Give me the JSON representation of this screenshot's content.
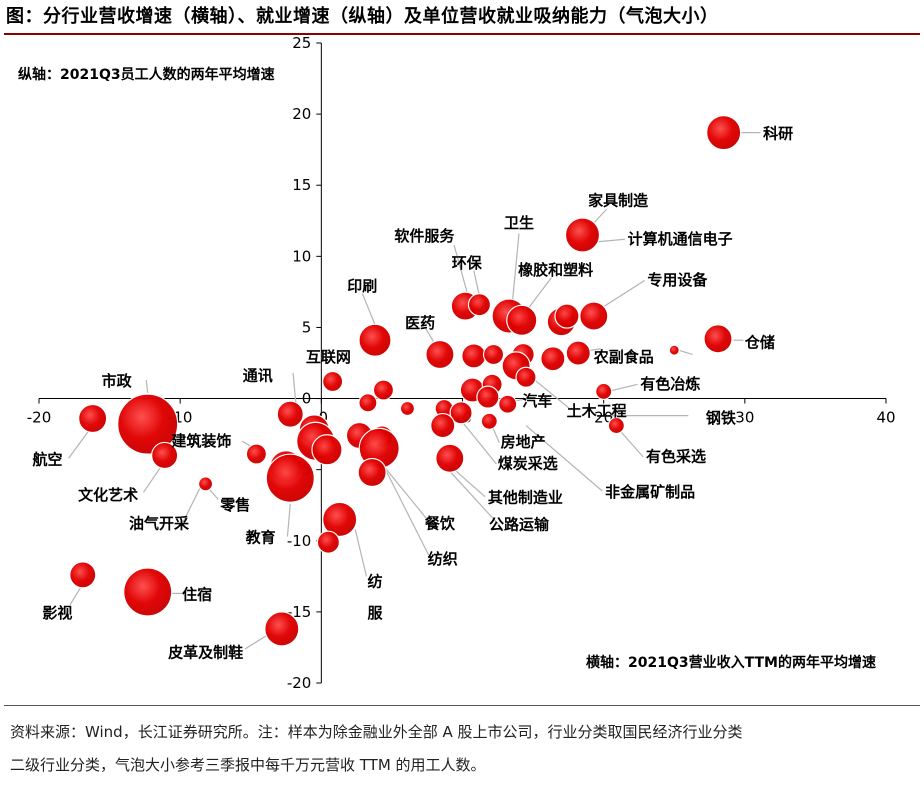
{
  "title": "图：分行业营收增速（横轴）、就业增速（纵轴）及单位营收就业吸纳能力（气泡大小）",
  "footnote": [
    "资料来源：Wind，长江证券研究所。注：样本为除金融业外全部 A 股上市公司，行业分类取国民经济行业分类",
    "二级行业分类，气泡大小参考三季报中每千万元营收 TTM 的用工人数。"
  ],
  "chart_data": {
    "type": "scatter",
    "ylabel": "纵轴：2021Q3员工人数的两年平均增速",
    "xlabel": "横轴：2021Q3营业收入TTM的两年平均增速",
    "xlim": [
      -20,
      40
    ],
    "ylim": [
      -20,
      25
    ],
    "xticks": [
      -20,
      -10,
      0,
      10,
      20,
      30,
      40
    ],
    "yticks": [
      -20,
      -15,
      -10,
      -5,
      0,
      5,
      10,
      15,
      20,
      25
    ],
    "bubble_color": "#e00000",
    "bubbles": [
      {
        "x": 28.5,
        "y": 18.7,
        "r": 17
      },
      {
        "x": 18.5,
        "y": 11.5,
        "r": 17
      },
      {
        "x": 10.2,
        "y": 6.5,
        "r": 14
      },
      {
        "x": 11.2,
        "y": 6.6,
        "r": 11
      },
      {
        "x": 13.3,
        "y": 5.8,
        "r": 17
      },
      {
        "x": 14.2,
        "y": 5.5,
        "r": 15
      },
      {
        "x": 17.0,
        "y": 5.4,
        "r": 14
      },
      {
        "x": 17.4,
        "y": 5.8,
        "r": 12
      },
      {
        "x": 19.3,
        "y": 5.8,
        "r": 14
      },
      {
        "x": 28.1,
        "y": 4.2,
        "r": 14
      },
      {
        "x": 3.8,
        "y": 4.1,
        "r": 16
      },
      {
        "x": 8.4,
        "y": 3.1,
        "r": 14
      },
      {
        "x": 10.8,
        "y": 3.0,
        "r": 12
      },
      {
        "x": 12.2,
        "y": 3.1,
        "r": 10
      },
      {
        "x": 14.3,
        "y": 3.1,
        "r": 11
      },
      {
        "x": 13.8,
        "y": 2.3,
        "r": 14
      },
      {
        "x": 16.4,
        "y": 2.8,
        "r": 12
      },
      {
        "x": 18.2,
        "y": 3.2,
        "r": 12
      },
      {
        "x": 25.0,
        "y": 3.4,
        "r": 5
      },
      {
        "x": 14.5,
        "y": 1.5,
        "r": 10
      },
      {
        "x": 0.8,
        "y": 1.2,
        "r": 10
      },
      {
        "x": 4.4,
        "y": 0.6,
        "r": 10
      },
      {
        "x": 10.7,
        "y": 0.6,
        "r": 12
      },
      {
        "x": 12.1,
        "y": 1.0,
        "r": 10
      },
      {
        "x": 11.8,
        "y": 0.1,
        "r": 11
      },
      {
        "x": 13.2,
        "y": -0.4,
        "r": 9
      },
      {
        "x": 20.0,
        "y": 0.5,
        "r": 8
      },
      {
        "x": 3.3,
        "y": -0.3,
        "r": 9
      },
      {
        "x": 6.1,
        "y": -0.7,
        "r": 7
      },
      {
        "x": 8.7,
        "y": -0.7,
        "r": 9
      },
      {
        "x": 9.9,
        "y": -1.0,
        "r": 11
      },
      {
        "x": 11.9,
        "y": -1.6,
        "r": 8
      },
      {
        "x": 20.9,
        "y": -1.9,
        "r": 8
      },
      {
        "x": 8.6,
        "y": -1.9,
        "r": 12
      },
      {
        "x": -16.2,
        "y": -1.4,
        "r": 14
      },
      {
        "x": -12.3,
        "y": -1.8,
        "r": 30
      },
      {
        "x": -11.1,
        "y": -4.0,
        "r": 13
      },
      {
        "x": -2.2,
        "y": -1.1,
        "r": 13
      },
      {
        "x": -0.5,
        "y": -2.2,
        "r": 15
      },
      {
        "x": -0.4,
        "y": -3.0,
        "r": 19
      },
      {
        "x": 0.4,
        "y": -3.6,
        "r": 15
      },
      {
        "x": -4.6,
        "y": -3.9,
        "r": 10
      },
      {
        "x": 2.7,
        "y": -2.6,
        "r": 13
      },
      {
        "x": 4.3,
        "y": -2.7,
        "r": 11
      },
      {
        "x": 4.1,
        "y": -3.5,
        "r": 20
      },
      {
        "x": 3.6,
        "y": -5.2,
        "r": 14
      },
      {
        "x": 9.1,
        "y": -4.2,
        "r": 14
      },
      {
        "x": -2.5,
        "y": -4.8,
        "r": 16
      },
      {
        "x": -2.2,
        "y": -5.6,
        "r": 24
      },
      {
        "x": -8.2,
        "y": -6.0,
        "r": 7
      },
      {
        "x": 1.3,
        "y": -8.5,
        "r": 17
      },
      {
        "x": 0.5,
        "y": -10.1,
        "r": 11
      },
      {
        "x": -16.9,
        "y": -12.4,
        "r": 13
      },
      {
        "x": -12.3,
        "y": -13.6,
        "r": 24
      },
      {
        "x": -2.8,
        "y": -16.2,
        "r": 17
      }
    ],
    "labels": [
      {
        "text": "科研",
        "x": 31.3,
        "y": 18.7,
        "anchor": "start"
      },
      {
        "text": "家具制造",
        "x": 18.9,
        "y": 14.0,
        "anchor": "start"
      },
      {
        "text": "计算机通信电子",
        "x": 21.7,
        "y": 11.3,
        "anchor": "start"
      },
      {
        "text": "卫生",
        "x": 14.0,
        "y": 12.4,
        "anchor": "middle"
      },
      {
        "text": "软件服务",
        "x": 7.3,
        "y": 11.5,
        "anchor": "middle"
      },
      {
        "text": "环保",
        "x": 10.3,
        "y": 9.6,
        "anchor": "middle"
      },
      {
        "text": "橡胶和塑料",
        "x": 16.6,
        "y": 9.1,
        "anchor": "middle"
      },
      {
        "text": "专用设备",
        "x": 23.1,
        "y": 8.4,
        "anchor": "start"
      },
      {
        "text": "印刷",
        "x": 2.9,
        "y": 8.0,
        "anchor": "middle"
      },
      {
        "text": "医药",
        "x": 7.0,
        "y": 5.4,
        "anchor": "middle"
      },
      {
        "text": "仓储",
        "x": 30.0,
        "y": 4.0,
        "anchor": "start"
      },
      {
        "text": "互联网",
        "x": 0.5,
        "y": 3.0,
        "anchor": "middle"
      },
      {
        "text": "农副食品",
        "x": 19.3,
        "y": 3.0,
        "anchor": "start"
      },
      {
        "text": "通讯",
        "x": -4.5,
        "y": 1.7,
        "anchor": "middle"
      },
      {
        "text": "市政",
        "x": -14.5,
        "y": 1.3,
        "anchor": "middle"
      },
      {
        "text": "有色冶炼",
        "x": 22.6,
        "y": 1.1,
        "anchor": "start"
      },
      {
        "text": "汽车",
        "x": 15.3,
        "y": -0.1,
        "anchor": "middle"
      },
      {
        "text": "土木工程",
        "x": 19.5,
        "y": -0.8,
        "anchor": "middle"
      },
      {
        "text": "钢铁",
        "x": 28.3,
        "y": -1.3,
        "anchor": "middle"
      },
      {
        "text": "建筑装饰",
        "x": -8.5,
        "y": -2.9,
        "anchor": "middle"
      },
      {
        "text": "房地产",
        "x": 12.7,
        "y": -3.0,
        "anchor": "start"
      },
      {
        "text": "航空",
        "x": -19.4,
        "y": -4.2,
        "anchor": "middle"
      },
      {
        "text": "有色采选",
        "x": 23.0,
        "y": -4.0,
        "anchor": "start"
      },
      {
        "text": "煤炭采选",
        "x": 12.5,
        "y": -4.5,
        "anchor": "start"
      },
      {
        "text": "文化艺术",
        "x": -15.1,
        "y": -6.7,
        "anchor": "middle"
      },
      {
        "text": "其他制造业",
        "x": 11.8,
        "y": -6.9,
        "anchor": "start"
      },
      {
        "text": "非金属矿制品",
        "x": 20.1,
        "y": -6.5,
        "anchor": "start"
      },
      {
        "text": "零售",
        "x": -6.1,
        "y": -7.4,
        "anchor": "middle"
      },
      {
        "text": "油气开采",
        "x": -11.5,
        "y": -8.7,
        "anchor": "middle"
      },
      {
        "text": "餐饮",
        "x": 8.4,
        "y": -8.7,
        "anchor": "middle"
      },
      {
        "text": "公路运输",
        "x": 14.0,
        "y": -8.8,
        "anchor": "middle"
      },
      {
        "text": "教育",
        "x": -4.3,
        "y": -9.7,
        "anchor": "middle"
      },
      {
        "text": "纺织",
        "x": 8.6,
        "y": -11.2,
        "anchor": "middle"
      },
      {
        "text": "纺",
        "x": 3.8,
        "y": -12.8,
        "anchor": "middle"
      },
      {
        "text": "影视",
        "x": -18.7,
        "y": -15.0,
        "anchor": "middle"
      },
      {
        "text": "住宿",
        "x": -8.8,
        "y": -13.7,
        "anchor": "middle"
      },
      {
        "text": "服",
        "x": 3.8,
        "y": -15.0,
        "anchor": "middle"
      },
      {
        "text": "皮革及制鞋",
        "x": -8.2,
        "y": -17.8,
        "anchor": "middle"
      }
    ],
    "leaders": [
      {
        "from": [
          29.7,
          18.7
        ],
        "to": [
          31.1,
          18.7
        ]
      },
      {
        "from": [
          18.5,
          11.5
        ],
        "to": [
          20.2,
          13.3
        ]
      },
      {
        "from": [
          19.3,
          11.0
        ],
        "to": [
          21.5,
          11.2
        ]
      },
      {
        "from": [
          14.0,
          11.6
        ],
        "to": [
          13.5,
          6.4
        ]
      },
      {
        "from": [
          9.4,
          10.8
        ],
        "to": [
          10.4,
          7.2
        ]
      },
      {
        "from": [
          10.8,
          9.0
        ],
        "to": [
          11.2,
          7.2
        ]
      },
      {
        "from": [
          16.3,
          8.5
        ],
        "to": [
          14.4,
          6.0
        ]
      },
      {
        "from": [
          22.9,
          8.3
        ],
        "to": [
          19.9,
          6.4
        ]
      },
      {
        "from": [
          2.9,
          7.4
        ],
        "to": [
          3.8,
          5.2
        ]
      },
      {
        "from": [
          7.4,
          4.9
        ],
        "to": [
          8.2,
          3.6
        ]
      },
      {
        "from": [
          29.2,
          4.1
        ],
        "to": [
          29.9,
          4.1
        ]
      },
      {
        "from": [
          19.8,
          3.5
        ],
        "to": [
          18.5,
          3.3
        ]
      },
      {
        "from": [
          26.3,
          3.1
        ],
        "to": [
          25.3,
          3.4
        ]
      },
      {
        "from": [
          -2.0,
          1.8
        ],
        "to": [
          -1.8,
          -0.4
        ]
      },
      {
        "from": [
          -12.4,
          1.3
        ],
        "to": [
          -12.3,
          0.4
        ]
      },
      {
        "from": [
          22.4,
          1.0
        ],
        "to": [
          20.3,
          0.5
        ]
      },
      {
        "from": [
          14.6,
          0.0
        ],
        "to": [
          13.1,
          -0.3
        ]
      },
      {
        "from": [
          17.7,
          -0.8
        ],
        "to": [
          15.0,
          1.4
        ]
      },
      {
        "from": [
          26.0,
          -1.2
        ],
        "to": [
          20.1,
          -1.2
        ]
      },
      {
        "from": [
          -5.6,
          -3.0
        ],
        "to": [
          -4.6,
          -3.6
        ]
      },
      {
        "from": [
          12.6,
          -3.1
        ],
        "to": [
          12.0,
          -1.7
        ]
      },
      {
        "from": [
          -17.9,
          -4.2
        ],
        "to": [
          -16.5,
          -2.3
        ]
      },
      {
        "from": [
          22.8,
          -4.1
        ],
        "to": [
          21.1,
          -2.2
        ]
      },
      {
        "from": [
          12.4,
          -4.6
        ],
        "to": [
          9.7,
          -1.3
        ]
      },
      {
        "from": [
          -12.6,
          -6.6
        ],
        "to": [
          -11.3,
          -4.7
        ]
      },
      {
        "from": [
          11.6,
          -6.9
        ],
        "to": [
          9.2,
          -4.8
        ]
      },
      {
        "from": [
          19.9,
          -6.5
        ],
        "to": [
          14.5,
          -1.9
        ]
      },
      {
        "from": [
          -7.3,
          -7.1
        ],
        "to": [
          -8.0,
          -6.3
        ]
      },
      {
        "from": [
          -9.8,
          -8.7
        ],
        "to": [
          -8.6,
          -6.3
        ]
      },
      {
        "from": [
          7.5,
          -8.5
        ],
        "to": [
          4.3,
          -4.6
        ]
      },
      {
        "from": [
          12.6,
          -8.9
        ],
        "to": [
          9.0,
          -5.0
        ]
      },
      {
        "from": [
          -2.4,
          -9.7
        ],
        "to": [
          -2.2,
          -7.4
        ]
      },
      {
        "from": [
          7.6,
          -11.0
        ],
        "to": [
          4.5,
          -4.9
        ]
      },
      {
        "from": [
          3.2,
          -12.5
        ],
        "to": [
          2.4,
          -9.2
        ]
      },
      {
        "from": [
          -17.8,
          -14.5
        ],
        "to": [
          -17.0,
          -13.2
        ]
      },
      {
        "from": [
          -9.8,
          -13.7
        ],
        "to": [
          -10.6,
          -13.7
        ]
      },
      {
        "from": [
          -5.4,
          -17.6
        ],
        "to": [
          -3.6,
          -16.5
        ]
      }
    ]
  }
}
